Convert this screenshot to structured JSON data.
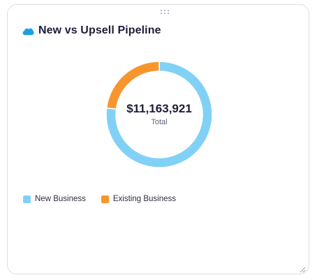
{
  "card": {
    "title": "New vs Upsell Pipeline",
    "icon": "salesforce-cloud-icon",
    "drag_handle_icon": "drag-dots-icon",
    "resize_icon": "resize-corner-icon"
  },
  "chart_data": {
    "type": "pie",
    "subtype": "donut",
    "center_value": "$11,163,921",
    "center_label": "Total",
    "series": [
      {
        "name": "New Business",
        "value": 0.77,
        "color": "#81d1f6"
      },
      {
        "name": "Existing Business",
        "value": 0.23,
        "color": "#f7962e"
      }
    ],
    "legend_position": "bottom-left"
  },
  "legend": {
    "items": [
      {
        "label": "New Business",
        "color": "#81d1f6"
      },
      {
        "label": "Existing Business",
        "color": "#f7962e"
      }
    ]
  }
}
